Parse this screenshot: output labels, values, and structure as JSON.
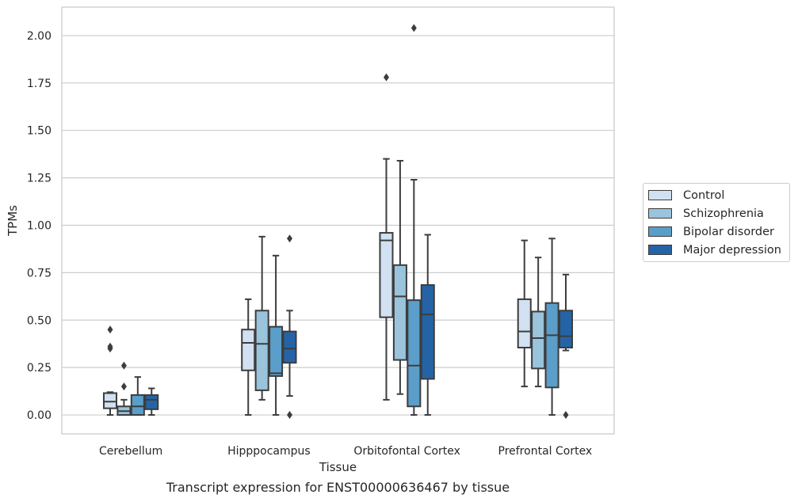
{
  "chart_data": {
    "type": "box",
    "xlabel": "Tissue",
    "ylabel": "TPMs",
    "caption": "Transcript expression for ENST00000636467 by tissue",
    "categories": [
      "Cerebellum",
      "Hipppocampus",
      "Orbitofontal Cortex",
      "Prefrontal Cortex"
    ],
    "ylim": [
      -0.1,
      2.15
    ],
    "yticks": [
      "0.00",
      "0.25",
      "0.50",
      "0.75",
      "1.00",
      "1.25",
      "1.50",
      "1.75",
      "2.00"
    ],
    "grid": true,
    "legend_position": "right",
    "series": [
      {
        "name": "Control",
        "color": "#d1e1f1",
        "boxes": [
          {
            "whislo": 0.0,
            "q1": 0.035,
            "med": 0.07,
            "q3": 0.115,
            "whishi": 0.12,
            "fliers": [
              0.45,
              0.36,
              0.35
            ]
          },
          {
            "whislo": 0.0,
            "q1": 0.235,
            "med": 0.38,
            "q3": 0.45,
            "whishi": 0.61,
            "fliers": []
          },
          {
            "whislo": 0.08,
            "q1": 0.515,
            "med": 0.92,
            "q3": 0.96,
            "whishi": 1.35,
            "fliers": [
              1.78
            ]
          },
          {
            "whislo": 0.15,
            "q1": 0.355,
            "med": 0.44,
            "q3": 0.61,
            "whishi": 0.92,
            "fliers": []
          }
        ]
      },
      {
        "name": "Schizophrenia",
        "color": "#9ac3dc",
        "boxes": [
          {
            "whislo": 0.0,
            "q1": 0.0,
            "med": 0.02,
            "q3": 0.045,
            "whishi": 0.08,
            "fliers": [
              0.26,
              0.15
            ]
          },
          {
            "whislo": 0.08,
            "q1": 0.13,
            "med": 0.375,
            "q3": 0.55,
            "whishi": 0.94,
            "fliers": []
          },
          {
            "whislo": 0.11,
            "q1": 0.29,
            "med": 0.625,
            "q3": 0.79,
            "whishi": 1.34,
            "fliers": []
          },
          {
            "whislo": 0.15,
            "q1": 0.245,
            "med": 0.405,
            "q3": 0.545,
            "whishi": 0.83,
            "fliers": []
          }
        ]
      },
      {
        "name": "Bipolar disorder",
        "color": "#5a9ec9",
        "boxes": [
          {
            "whislo": 0.0,
            "q1": 0.0,
            "med": 0.045,
            "q3": 0.105,
            "whishi": 0.2,
            "fliers": []
          },
          {
            "whislo": 0.0,
            "q1": 0.205,
            "med": 0.22,
            "q3": 0.465,
            "whishi": 0.84,
            "fliers": []
          },
          {
            "whislo": 0.0,
            "q1": 0.045,
            "med": 0.26,
            "q3": 0.605,
            "whishi": 1.24,
            "fliers": [
              2.04
            ]
          },
          {
            "whislo": 0.0,
            "q1": 0.145,
            "med": 0.42,
            "q3": 0.59,
            "whishi": 0.93,
            "fliers": []
          }
        ]
      },
      {
        "name": "Major depression",
        "color": "#2464a6",
        "boxes": [
          {
            "whislo": 0.0,
            "q1": 0.03,
            "med": 0.08,
            "q3": 0.105,
            "whishi": 0.14,
            "fliers": []
          },
          {
            "whislo": 0.1,
            "q1": 0.275,
            "med": 0.35,
            "q3": 0.44,
            "whishi": 0.55,
            "fliers": [
              0.93,
              0.0
            ]
          },
          {
            "whislo": 0.0,
            "q1": 0.19,
            "med": 0.53,
            "q3": 0.685,
            "whishi": 0.95,
            "fliers": []
          },
          {
            "whislo": 0.34,
            "q1": 0.355,
            "med": 0.415,
            "q3": 0.55,
            "whishi": 0.74,
            "fliers": [
              0.0
            ]
          }
        ]
      }
    ]
  }
}
